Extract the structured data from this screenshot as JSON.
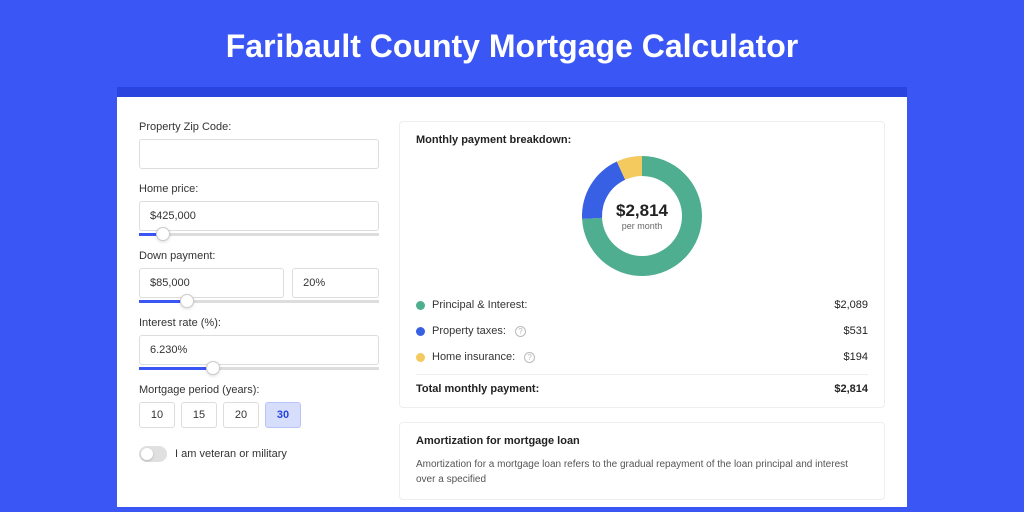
{
  "title": "Faribault County Mortgage Calculator",
  "colors": {
    "brand_bg": "#3a56f5",
    "brand_dark": "#2a44e0",
    "card_bg": "#ffffff",
    "border": "#dddddd",
    "text": "#333333",
    "muted": "#666666"
  },
  "form": {
    "zip": {
      "label": "Property Zip Code:",
      "value": ""
    },
    "home_price": {
      "label": "Home price:",
      "value": "$425,000",
      "slider_pct": 10
    },
    "down_payment": {
      "label": "Down payment:",
      "value": "$85,000",
      "pct_value": "20%",
      "slider_pct": 20
    },
    "interest": {
      "label": "Interest rate (%):",
      "value": "6.230%",
      "slider_pct": 31
    },
    "period": {
      "label": "Mortgage period (years):",
      "options": [
        "10",
        "15",
        "20",
        "30"
      ],
      "selected": "30"
    },
    "veteran": {
      "label": "I am veteran or military",
      "checked": false
    }
  },
  "breakdown": {
    "type": "donut",
    "title": "Monthly payment breakdown:",
    "center_value": "$2,814",
    "center_sub": "per month",
    "outer_radius": 60,
    "inner_radius": 40,
    "slices": [
      {
        "key": "principal_interest",
        "label": "Principal & Interest:",
        "amount": "$2,089",
        "value": 2089,
        "color": "#4fae8f",
        "has_info": false
      },
      {
        "key": "property_taxes",
        "label": "Property taxes:",
        "amount": "$531",
        "value": 531,
        "color": "#3860e4",
        "has_info": true
      },
      {
        "key": "home_insurance",
        "label": "Home insurance:",
        "amount": "$194",
        "value": 194,
        "color": "#f4c95d",
        "has_info": true
      }
    ],
    "total_label": "Total monthly payment:",
    "total_amount": "$2,814"
  },
  "amortization": {
    "title": "Amortization for mortgage loan",
    "text": "Amortization for a mortgage loan refers to the gradual repayment of the loan principal and interest over a specified"
  }
}
